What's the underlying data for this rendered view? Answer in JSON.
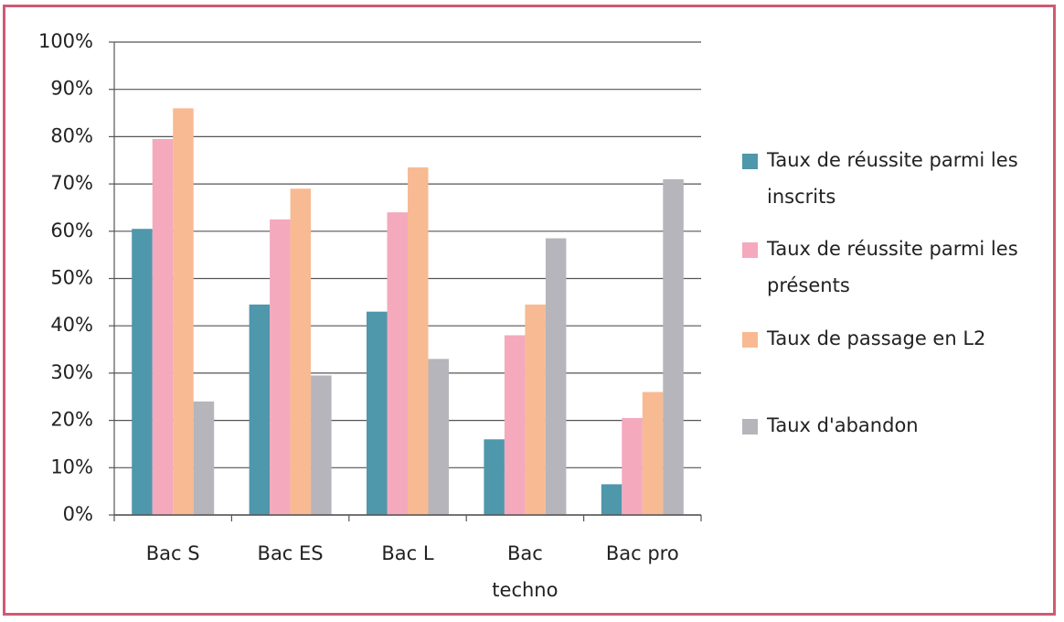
{
  "chart_data": {
    "type": "bar",
    "categories": [
      "Bac S",
      "Bac ES",
      "Bac L",
      "Bac techno",
      "Bac pro"
    ],
    "series": [
      {
        "name": "Taux de réussite parmi les inscrits",
        "color": "#4f97ab",
        "values": [
          60.5,
          44.5,
          43,
          16,
          6.5
        ]
      },
      {
        "name": "Taux de réussite parmi les présents",
        "color": "#f4a9bd",
        "values": [
          79.5,
          62.5,
          64,
          38,
          20.5
        ]
      },
      {
        "name": "Taux de passage en L2",
        "color": "#f8ba92",
        "values": [
          86,
          69,
          73.5,
          44.5,
          26
        ]
      },
      {
        "name": "Taux d'abandon",
        "color": "#b5b5bb",
        "values": [
          24,
          29.5,
          33,
          58.5,
          71
        ]
      }
    ],
    "ylim": [
      0,
      100
    ],
    "yticks": [
      {
        "value": 0,
        "label": "0%"
      },
      {
        "value": 10,
        "label": "10%"
      },
      {
        "value": 20,
        "label": "20%"
      },
      {
        "value": 30,
        "label": "30%"
      },
      {
        "value": 40,
        "label": "40%"
      },
      {
        "value": 50,
        "label": "50%"
      },
      {
        "value": 60,
        "label": "60%"
      },
      {
        "value": 70,
        "label": "70%"
      },
      {
        "value": 80,
        "label": "80%"
      },
      {
        "value": 90,
        "label": "90%"
      },
      {
        "value": 100,
        "label": "100%"
      }
    ],
    "grid": true,
    "legend": "right"
  }
}
